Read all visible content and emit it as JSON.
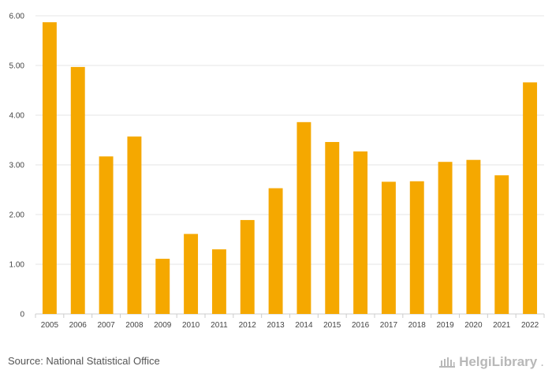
{
  "chart_data": {
    "type": "bar",
    "categories": [
      "2005",
      "2006",
      "2007",
      "2008",
      "2009",
      "2010",
      "2011",
      "2012",
      "2013",
      "2014",
      "2015",
      "2016",
      "2017",
      "2018",
      "2019",
      "2020",
      "2021",
      "2022"
    ],
    "values": [
      5.87,
      4.97,
      3.17,
      3.57,
      1.11,
      1.61,
      1.3,
      1.89,
      2.53,
      3.86,
      3.46,
      3.27,
      2.66,
      2.67,
      3.06,
      3.1,
      2.79,
      4.66
    ],
    "y_ticks": [
      "0",
      "1.00",
      "2.00",
      "3.00",
      "4.00",
      "5.00",
      "6.00"
    ],
    "ylim": [
      0,
      6
    ],
    "title": "",
    "xlabel": "",
    "ylabel": "",
    "grid": true,
    "bar_color": "#f5a800"
  },
  "footer": {
    "source": "Source: National Statistical Office",
    "brand_name": "HelgiLibrary",
    "brand_suffix": "."
  },
  "colors": {
    "bar": "#f5a800",
    "grid": "#e6e6e6",
    "brand": "#b8b8b8"
  }
}
